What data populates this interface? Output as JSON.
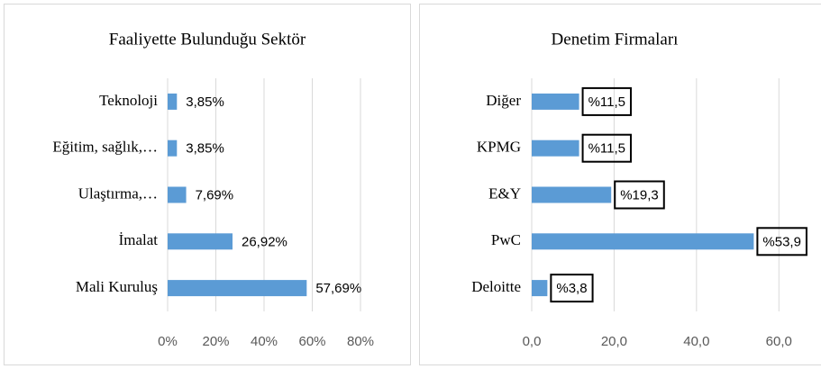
{
  "chart_data": [
    {
      "type": "bar",
      "orientation": "horizontal",
      "title": "Faaliyette Bulunduğu Sektör",
      "categories": [
        "Teknoloji",
        "Eğitim, sağlık,…",
        "Ulaştırma,…",
        "İmalat",
        "Mali Kuruluş"
      ],
      "values": [
        3.85,
        3.85,
        7.69,
        26.92,
        57.69
      ],
      "value_labels": [
        "3,85%",
        "3,85%",
        "7,69%",
        "26,92%",
        "57,69%"
      ],
      "color": "#5b9bd5",
      "grid": true,
      "label_box": false,
      "xlim": [
        0,
        80
      ],
      "xticks": [
        {
          "value": 0,
          "label": "0%"
        },
        {
          "value": 20,
          "label": "20%"
        },
        {
          "value": 40,
          "label": "40%"
        },
        {
          "value": 60,
          "label": "60%"
        },
        {
          "value": 80,
          "label": "80%"
        }
      ]
    },
    {
      "type": "bar",
      "orientation": "horizontal",
      "title": "Denetim Firmaları",
      "categories": [
        "Diğer",
        "KPMG",
        "E&Y",
        "PwC",
        "Deloitte"
      ],
      "values": [
        11.5,
        11.5,
        19.3,
        53.9,
        3.8
      ],
      "value_labels": [
        "%11,5",
        "%11,5",
        "%19,3",
        "%53,9",
        "%3,8"
      ],
      "color": "#5b9bd5",
      "grid": true,
      "label_box": true,
      "xlim": [
        0,
        70
      ],
      "xticks": [
        {
          "value": 0,
          "label": "0,0"
        },
        {
          "value": 20,
          "label": "20,0"
        },
        {
          "value": 40,
          "label": "40,0"
        },
        {
          "value": 60,
          "label": "60,0"
        }
      ]
    }
  ]
}
